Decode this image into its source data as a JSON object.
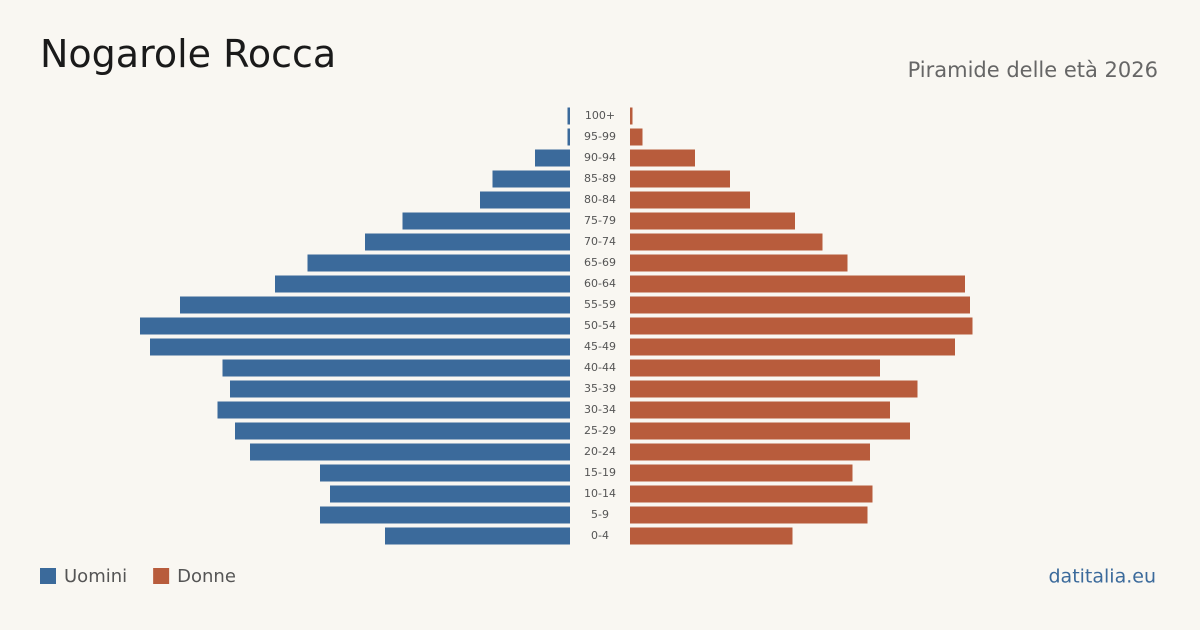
{
  "chart_data": {
    "type": "pyramid",
    "title": "Nogarole Rocca",
    "subtitle": "Piramide delle età 2026",
    "source": "datitalia.eu",
    "categories": [
      "0-4",
      "5-9",
      "10-14",
      "15-19",
      "20-24",
      "25-29",
      "30-34",
      "35-39",
      "40-44",
      "45-49",
      "50-54",
      "55-59",
      "60-64",
      "65-69",
      "70-74",
      "75-79",
      "80-84",
      "85-89",
      "90-94",
      "95-99",
      "100+"
    ],
    "series": [
      {
        "name": "Uomini",
        "color": "#3b6a9b",
        "values": [
          74,
          100,
          96,
          100,
          128,
          134,
          141,
          136,
          139,
          168,
          172,
          156,
          118,
          105,
          82,
          67,
          36,
          31,
          14,
          1,
          1
        ]
      },
      {
        "name": "Donne",
        "color": "#b85c3c",
        "values": [
          65,
          95,
          97,
          89,
          96,
          112,
          104,
          115,
          100,
          130,
          137,
          136,
          134,
          87,
          77,
          66,
          48,
          40,
          26,
          5,
          1
        ]
      }
    ]
  }
}
